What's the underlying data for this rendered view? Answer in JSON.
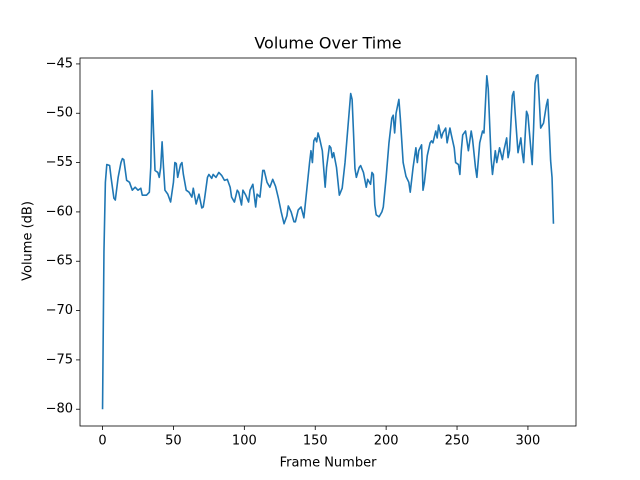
{
  "chart_data": {
    "type": "line",
    "title": "Volume Over Time",
    "x_label": "Frame Number",
    "y_label": "Volume (dB)",
    "color": "#1f77b4",
    "x": [
      0,
      1,
      2,
      3,
      5,
      6,
      8,
      9,
      11,
      13,
      14,
      15,
      17,
      19,
      21,
      23,
      25,
      27,
      28,
      31,
      33,
      34,
      35,
      36,
      37,
      39,
      40,
      41,
      42,
      43,
      44,
      46,
      48,
      50,
      51,
      52,
      53,
      55,
      56,
      57,
      59,
      61,
      63,
      64,
      66,
      68,
      70,
      71,
      72,
      74,
      75,
      77,
      78,
      80,
      82,
      84,
      86,
      88,
      90,
      91,
      93,
      95,
      96,
      98,
      99,
      101,
      103,
      104,
      106,
      108,
      109,
      111,
      113,
      114,
      116,
      118,
      120,
      122,
      124,
      126,
      128,
      130,
      131,
      133,
      135,
      136,
      138,
      140,
      142,
      144,
      146,
      147,
      148,
      149,
      150,
      151,
      152,
      153,
      155,
      157,
      158,
      160,
      161,
      162,
      163,
      165,
      167,
      169,
      171,
      173,
      175,
      176,
      177,
      178,
      179,
      181,
      182,
      184,
      186,
      187,
      189,
      190,
      191,
      192,
      193,
      195,
      197,
      198,
      200,
      202,
      204,
      205,
      206,
      207,
      209,
      210,
      212,
      214,
      216,
      217,
      219,
      221,
      222,
      223,
      225,
      226,
      227,
      229,
      231,
      232,
      233,
      235,
      236,
      237,
      239,
      240,
      242,
      243,
      245,
      246,
      248,
      249,
      251,
      252,
      253,
      254,
      256,
      258,
      260,
      261,
      263,
      264,
      266,
      268,
      269,
      271,
      272,
      274,
      275,
      277,
      278,
      280,
      282,
      283,
      285,
      286,
      287,
      289,
      290,
      291,
      293,
      295,
      296,
      297,
      299,
      300,
      303,
      304,
      305,
      306,
      307,
      308,
      309,
      311,
      313,
      314,
      315,
      316,
      317,
      318
    ],
    "values": [
      -80,
      -64,
      -57,
      -55.2,
      -55.3,
      -56.5,
      -58.6,
      -58.8,
      -56.5,
      -55,
      -54.6,
      -54.7,
      -56.8,
      -57,
      -57.8,
      -57.5,
      -57.8,
      -57.6,
      -58.3,
      -58.3,
      -58,
      -55.5,
      -47.7,
      -52,
      -55.8,
      -56,
      -56.5,
      -55.5,
      -52.9,
      -55.5,
      -57.8,
      -58.2,
      -59,
      -57,
      -55,
      -55.1,
      -56.5,
      -55.2,
      -55,
      -56.2,
      -57.8,
      -58,
      -58.5,
      -57.6,
      -59.2,
      -58.2,
      -59.6,
      -59.5,
      -58.6,
      -56.5,
      -56.2,
      -56.6,
      -56.2,
      -56.5,
      -56,
      -56.3,
      -56.8,
      -56.7,
      -57.5,
      -58.5,
      -59,
      -57.8,
      -58,
      -59.3,
      -57.8,
      -58.3,
      -59,
      -57.8,
      -57.2,
      -59.5,
      -58.2,
      -58.5,
      -55.8,
      -55.8,
      -57,
      -57.5,
      -56.7,
      -57.4,
      -58.6,
      -60,
      -61.2,
      -60.4,
      -59.4,
      -60,
      -61,
      -61,
      -59.8,
      -59.5,
      -60.6,
      -57.8,
      -55,
      -53.8,
      -55,
      -52.8,
      -52.5,
      -52.9,
      -52,
      -52.5,
      -53.8,
      -57.5,
      -55.5,
      -53.3,
      -53.5,
      -54.5,
      -54,
      -55.5,
      -58.3,
      -57.6,
      -55,
      -51.5,
      -48,
      -48.6,
      -52,
      -55.6,
      -56.5,
      -55.5,
      -55.3,
      -56,
      -57.5,
      -56.7,
      -57.2,
      -56,
      -56.2,
      -59.3,
      -60.3,
      -60.5,
      -60,
      -59.5,
      -56.5,
      -53,
      -50.5,
      -50.2,
      -52,
      -50,
      -48.6,
      -50.5,
      -55,
      -56.4,
      -57,
      -58,
      -55.5,
      -53.5,
      -55,
      -53.8,
      -53.2,
      -57.8,
      -57,
      -54.3,
      -53,
      -52.8,
      -53,
      -51.8,
      -52.5,
      -51.2,
      -52.5,
      -52,
      -51.5,
      -53,
      -51.5,
      -52.2,
      -53.5,
      -55,
      -55.2,
      -56.2,
      -53.8,
      -52.2,
      -51.8,
      -53.8,
      -51.8,
      -52.7,
      -55.5,
      -56.5,
      -53,
      -51.8,
      -52,
      -46.2,
      -47.5,
      -54.5,
      -56.2,
      -53.8,
      -55,
      -53.5,
      -54.7,
      -53.8,
      -52.5,
      -54.5,
      -53.8,
      -48.2,
      -47.8,
      -50,
      -54,
      -52.5,
      -54,
      -55,
      -49.8,
      -50.2,
      -55.2,
      -51.5,
      -47,
      -46.2,
      -46.1,
      -48.7,
      -51.5,
      -51,
      -49.2,
      -48.6,
      -51.5,
      -54.8,
      -56.5,
      -61.2
    ],
    "xlim": [
      -15.9,
      333.9
    ],
    "xticks": [
      0,
      50,
      100,
      150,
      200,
      250,
      300
    ],
    "ylim": [
      -81.7,
      -44.4
    ],
    "yticks": [
      {
        "value": -80,
        "label": "−80"
      },
      {
        "value": -75,
        "label": "−75"
      },
      {
        "value": -70,
        "label": "−70"
      },
      {
        "value": -65,
        "label": "−65"
      },
      {
        "value": -60,
        "label": "−60"
      },
      {
        "value": -55,
        "label": "−55"
      },
      {
        "value": -50,
        "label": "−50"
      },
      {
        "value": -45,
        "label": "−45"
      }
    ]
  }
}
